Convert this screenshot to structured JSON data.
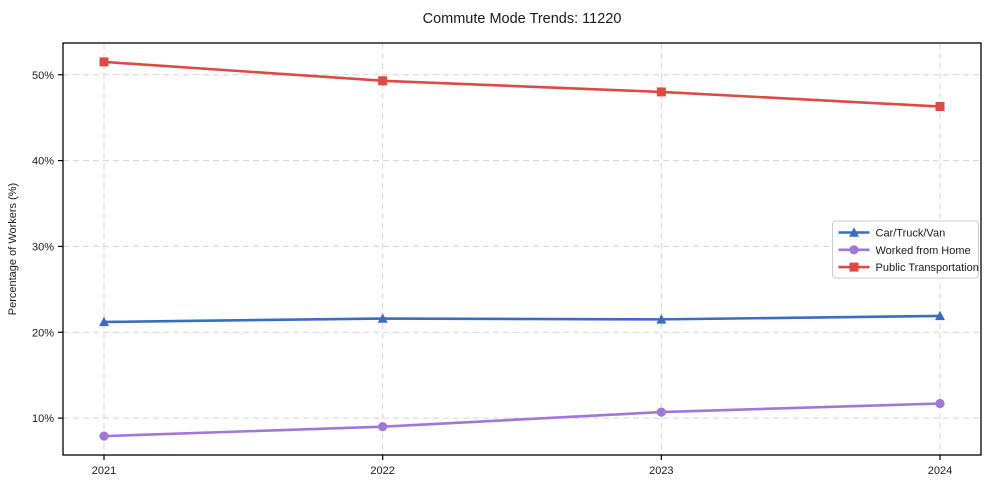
{
  "figure": {
    "title": "Commute Mode Trends: 11220",
    "background_color": "#ffffff"
  },
  "chart_data": {
    "type": "line",
    "title": "Commute Mode Trends: 11220",
    "xlabel": "",
    "ylabel": "Percentage of Workers (%)",
    "categories": [
      "2021",
      "2022",
      "2023",
      "2024"
    ],
    "series": [
      {
        "name": "Car/Truck/Van",
        "color": "#3a6cc4",
        "marker": "triangle",
        "values": [
          21.2,
          21.6,
          21.5,
          21.9
        ]
      },
      {
        "name": "Worked from Home",
        "color": "#a077d8",
        "marker": "circle",
        "values": [
          7.9,
          9.0,
          10.7,
          11.7
        ]
      },
      {
        "name": "Public Transportation",
        "color": "#dc4a43",
        "marker": "square",
        "values": [
          51.5,
          49.3,
          48.0,
          46.3
        ]
      }
    ],
    "yticks": [
      10,
      20,
      30,
      40,
      50
    ],
    "ytick_labels": [
      "10%",
      "20%",
      "30%",
      "40%",
      "50%"
    ],
    "ylim": [
      5.7,
      53.7
    ],
    "grid": true,
    "grid_style": "dashed",
    "legend": {
      "position": "center-right",
      "entries": [
        "Car/Truck/Van",
        "Worked from Home",
        "Public Transportation"
      ]
    },
    "colors": {
      "grid": "#d4d4d4",
      "axis": "#000000",
      "text": "#1a1a1a",
      "legend_border": "#cccccc",
      "legend_background": "#ffffff"
    }
  }
}
